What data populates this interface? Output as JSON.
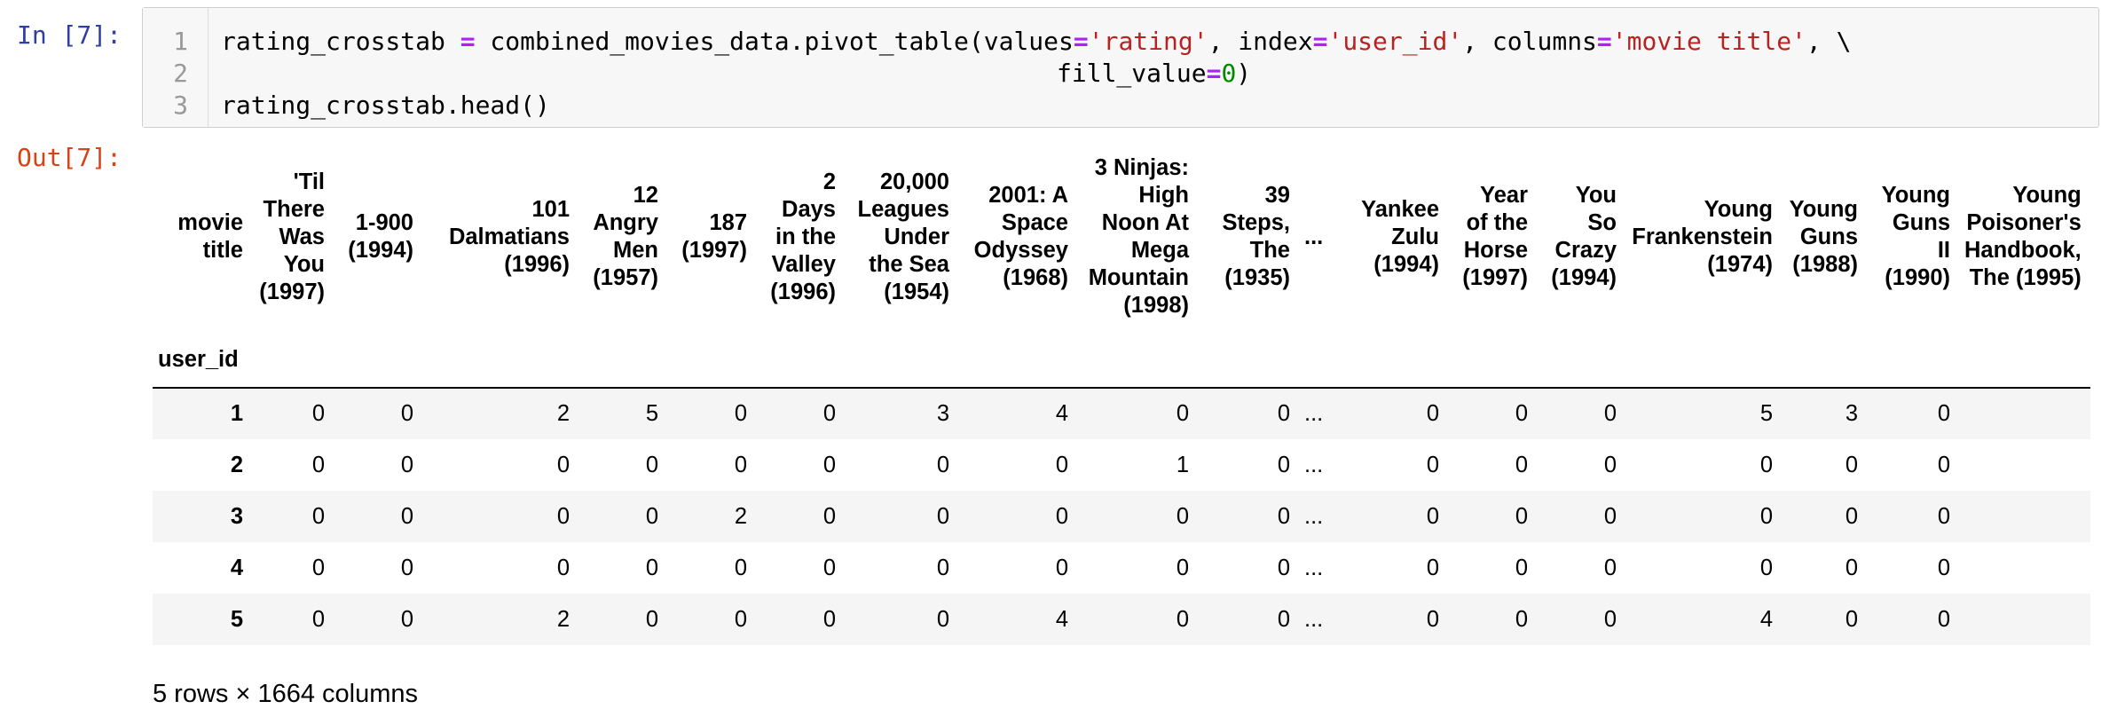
{
  "input_cell": {
    "prompt": "In [7]:",
    "line_numbers": [
      "1",
      "2",
      "3"
    ],
    "code": {
      "l1_a": "rating_crosstab ",
      "l1_eq1": "=",
      "l1_b": " combined_movies_data.pivot_table(values",
      "l1_eq2": "=",
      "l1_s1": "'rating'",
      "l1_c": ", index",
      "l1_eq3": "=",
      "l1_s2": "'user_id'",
      "l1_d": ", columns",
      "l1_eq4": "=",
      "l1_s3": "'movie title'",
      "l1_e": ", \\",
      "l2_a": "fill_value",
      "l2_eq": "=",
      "l2_num": "0",
      "l2_b": ")",
      "l3": "rating_crosstab.head()"
    }
  },
  "output_cell": {
    "prompt": "Out[7]:",
    "table": {
      "columns_name": "movie title",
      "index_name": "user_id",
      "columns": [
        "'Til There Was You (1997)",
        "1-900 (1994)",
        "101 Dalmatians (1996)",
        "12 Angry Men (1957)",
        "187 (1997)",
        "2 Days in the Valley (1996)",
        "20,000 Leagues Under the Sea (1954)",
        "2001: A Space Odyssey (1968)",
        "3 Ninjas: High Noon At Mega Mountain (1998)",
        "39 Steps, The (1935)",
        "...",
        "Yankee Zulu (1994)",
        "Year of the Horse (1997)",
        "You So Crazy (1994)",
        "Young Frankenstein (1974)",
        "Young Guns (1988)",
        "Young Guns II (1990)",
        "Young Poisoner's Handbook, The (1995)"
      ],
      "column_lines": [
        [
          "'Til",
          "There",
          "Was",
          "You",
          "(1997)"
        ],
        [
          "1-900",
          "(1994)"
        ],
        [
          "101",
          "Dalmatians",
          "(1996)"
        ],
        [
          "12",
          "Angry",
          "Men",
          "(1957)"
        ],
        [
          "187",
          "(1997)"
        ],
        [
          "2",
          "Days",
          "in the",
          "Valley",
          "(1996)"
        ],
        [
          "20,000",
          "Leagues",
          "Under",
          "the Sea",
          "(1954)"
        ],
        [
          "2001: A",
          "Space",
          "Odyssey",
          "(1968)"
        ],
        [
          "3 Ninjas:",
          "High",
          "Noon At",
          "Mega",
          "Mountain",
          "(1998)"
        ],
        [
          "39",
          "Steps,",
          "The",
          "(1935)"
        ],
        [
          "..."
        ],
        [
          "Yankee",
          "Zulu",
          "(1994)"
        ],
        [
          "Year",
          "of the",
          "Horse",
          "(1997)"
        ],
        [
          "You",
          "So",
          "Crazy",
          "(1994)"
        ],
        [
          "Young",
          "Frankenstein",
          "(1974)"
        ],
        [
          "Young",
          "Guns",
          "(1988)"
        ],
        [
          "Young",
          "Guns",
          "II",
          "(1990)"
        ],
        [
          "Young",
          "Poisoner's",
          "Handbook,",
          "The (1995)"
        ]
      ],
      "rows": [
        {
          "index": "1",
          "values": [
            "0",
            "0",
            "2",
            "5",
            "0",
            "0",
            "3",
            "4",
            "0",
            "0",
            "...",
            "0",
            "0",
            "0",
            "5",
            "3",
            "0",
            ""
          ]
        },
        {
          "index": "2",
          "values": [
            "0",
            "0",
            "0",
            "0",
            "0",
            "0",
            "0",
            "0",
            "1",
            "0",
            "...",
            "0",
            "0",
            "0",
            "0",
            "0",
            "0",
            ""
          ]
        },
        {
          "index": "3",
          "values": [
            "0",
            "0",
            "0",
            "0",
            "2",
            "0",
            "0",
            "0",
            "0",
            "0",
            "...",
            "0",
            "0",
            "0",
            "0",
            "0",
            "0",
            ""
          ]
        },
        {
          "index": "4",
          "values": [
            "0",
            "0",
            "0",
            "0",
            "0",
            "0",
            "0",
            "0",
            "0",
            "0",
            "...",
            "0",
            "0",
            "0",
            "0",
            "0",
            "0",
            ""
          ]
        },
        {
          "index": "5",
          "values": [
            "0",
            "0",
            "2",
            "0",
            "0",
            "0",
            "0",
            "4",
            "0",
            "0",
            "...",
            "0",
            "0",
            "0",
            "4",
            "0",
            "0",
            ""
          ]
        }
      ]
    },
    "shape_text": "5 rows × 1664 columns"
  }
}
